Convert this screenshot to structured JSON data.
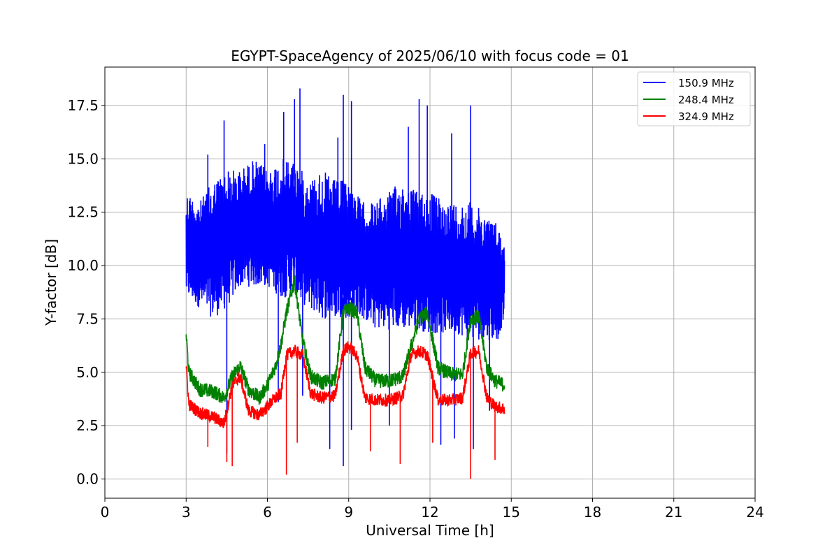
{
  "chart_data": {
    "type": "line",
    "title": "EGYPT-SpaceAgency of 2025/06/10 with focus code = 01",
    "xlabel": "Universal Time [h]",
    "ylabel": "Y-factor [dB]",
    "xlim": [
      0,
      24
    ],
    "ylim": [
      -0.9,
      19.3
    ],
    "xticks": [
      0,
      3,
      6,
      9,
      12,
      15,
      18,
      21,
      24
    ],
    "yticks": [
      0.0,
      2.5,
      5.0,
      7.5,
      10.0,
      12.5,
      15.0,
      17.5
    ],
    "ytick_labels": [
      "0.0",
      "2.5",
      "5.0",
      "7.5",
      "10.0",
      "12.5",
      "15.0",
      "17.5"
    ],
    "grid": true,
    "legend_position": "top-right",
    "series": [
      {
        "name": "150.9 MHz",
        "color": "#0000ff",
        "x": [
          3.0,
          3.5,
          4.0,
          4.5,
          5.0,
          5.5,
          6.0,
          6.5,
          7.0,
          7.5,
          8.0,
          8.5,
          9.0,
          9.5,
          10.0,
          10.5,
          11.0,
          11.5,
          12.0,
          12.5,
          13.0,
          13.5,
          14.0,
          14.5,
          14.75
        ],
        "y_low": [
          8.5,
          8.0,
          7.5,
          8.0,
          9.0,
          9.0,
          9.0,
          8.5,
          8.5,
          8.0,
          7.5,
          7.5,
          7.5,
          7.5,
          7.0,
          7.0,
          7.0,
          7.0,
          6.8,
          6.8,
          6.8,
          6.5,
          6.5,
          6.5,
          7.5
        ],
        "y_high": [
          13.5,
          13.0,
          14.0,
          14.5,
          14.5,
          15.0,
          14.5,
          15.0,
          15.0,
          14.0,
          14.5,
          14.0,
          14.0,
          13.0,
          13.0,
          13.5,
          14.0,
          13.5,
          13.5,
          13.0,
          13.0,
          13.0,
          12.5,
          12.0,
          11.0
        ],
        "spikes": [
          [
            3.8,
            15.2
          ],
          [
            4.4,
            16.8
          ],
          [
            5.9,
            15.7
          ],
          [
            6.6,
            17.2
          ],
          [
            7.0,
            17.8
          ],
          [
            7.2,
            18.3
          ],
          [
            8.6,
            16.0
          ],
          [
            8.8,
            18.0
          ],
          [
            9.1,
            17.7
          ],
          [
            11.2,
            16.5
          ],
          [
            11.6,
            17.8
          ],
          [
            11.9,
            17.5
          ],
          [
            12.8,
            16.2
          ],
          [
            13.5,
            17.5
          ]
        ],
        "dips": [
          [
            4.5,
            1.2
          ],
          [
            6.4,
            3.6
          ],
          [
            7.3,
            3.9
          ],
          [
            8.3,
            1.4
          ],
          [
            8.8,
            0.6
          ],
          [
            9.1,
            2.3
          ],
          [
            10.5,
            2.5
          ],
          [
            12.4,
            1.6
          ],
          [
            12.9,
            1.9
          ],
          [
            13.6,
            1.4
          ],
          [
            14.2,
            3.2
          ]
        ]
      },
      {
        "name": "248.4 MHz",
        "color": "#008000",
        "x": [
          3.0,
          3.1,
          3.5,
          4.0,
          4.4,
          4.7,
          5.0,
          5.3,
          5.7,
          6.0,
          6.3,
          6.5,
          6.7,
          7.0,
          7.3,
          7.6,
          8.0,
          8.5,
          8.8,
          9.0,
          9.3,
          9.6,
          10.0,
          10.5,
          11.0,
          11.3,
          11.6,
          11.9,
          12.3,
          12.8,
          13.2,
          13.5,
          13.8,
          14.1,
          14.4,
          14.75
        ],
        "y": [
          6.8,
          5.0,
          4.2,
          4.1,
          3.8,
          4.8,
          5.3,
          4.2,
          3.8,
          4.4,
          5.3,
          6.3,
          7.8,
          9.3,
          6.5,
          4.8,
          4.5,
          4.7,
          7.8,
          8.0,
          7.8,
          5.2,
          4.6,
          4.6,
          4.8,
          6.2,
          7.5,
          7.8,
          5.2,
          4.9,
          4.9,
          7.5,
          7.6,
          5.2,
          4.6,
          4.4
        ],
        "noise": 0.35
      },
      {
        "name": "324.9 MHz",
        "color": "#ff0000",
        "x": [
          3.0,
          3.1,
          3.5,
          4.0,
          4.4,
          4.7,
          5.0,
          5.3,
          5.7,
          6.0,
          6.3,
          6.5,
          6.7,
          7.0,
          7.3,
          7.6,
          8.0,
          8.5,
          8.8,
          9.0,
          9.3,
          9.6,
          10.0,
          10.5,
          11.0,
          11.3,
          11.6,
          11.9,
          12.3,
          12.8,
          13.2,
          13.5,
          13.8,
          14.1,
          14.4,
          14.75
        ],
        "y": [
          5.3,
          3.5,
          3.1,
          2.9,
          2.6,
          4.4,
          4.8,
          3.2,
          3.0,
          3.4,
          3.8,
          4.0,
          5.8,
          6.0,
          5.8,
          4.0,
          3.8,
          3.9,
          6.0,
          6.2,
          5.8,
          3.8,
          3.7,
          3.7,
          3.9,
          5.8,
          6.0,
          5.8,
          3.7,
          3.7,
          3.8,
          5.9,
          6.0,
          3.8,
          3.4,
          3.3
        ],
        "noise": 0.3,
        "dips": [
          [
            3.8,
            1.5
          ],
          [
            4.5,
            0.8
          ],
          [
            4.7,
            0.6
          ],
          [
            6.7,
            0.2
          ],
          [
            7.1,
            1.7
          ],
          [
            9.8,
            1.3
          ],
          [
            10.9,
            0.7
          ],
          [
            12.1,
            1.7
          ],
          [
            13.5,
            0.0
          ],
          [
            14.4,
            0.9
          ]
        ]
      }
    ]
  }
}
